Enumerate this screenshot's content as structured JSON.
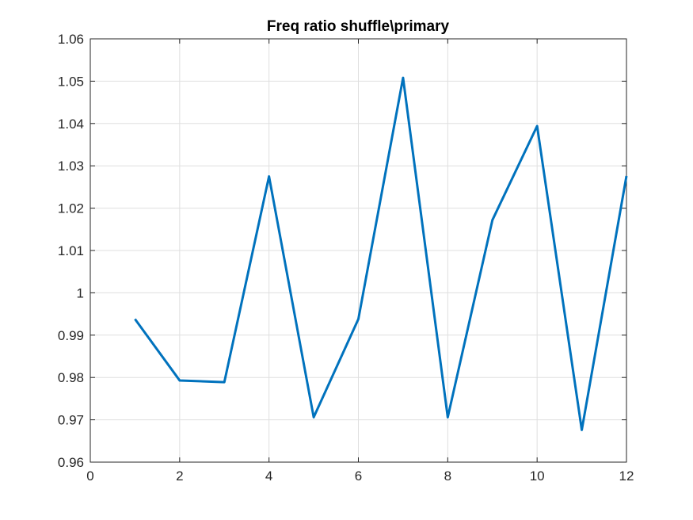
{
  "chart_data": {
    "type": "line",
    "title": "Freq ratio shuffle\\primary",
    "xlabel": "",
    "ylabel": "",
    "xlim": [
      0,
      12
    ],
    "ylim": [
      0.96,
      1.06
    ],
    "xticks": [
      0,
      2,
      4,
      6,
      8,
      10,
      12
    ],
    "yticks": [
      0.96,
      0.97,
      0.98,
      0.99,
      1,
      1.01,
      1.02,
      1.03,
      1.04,
      1.05,
      1.06
    ],
    "xtick_labels": [
      "0",
      "2",
      "4",
      "6",
      "8",
      "10",
      "12"
    ],
    "ytick_labels": [
      "0.96",
      "0.97",
      "0.98",
      "0.99",
      "1",
      "1.01",
      "1.02",
      "1.03",
      "1.04",
      "1.05",
      "1.06"
    ],
    "grid": true,
    "series": [
      {
        "color": "#0072bd",
        "x": [
          1,
          2,
          3,
          4,
          5,
          6,
          7,
          8,
          9,
          10,
          11,
          12
        ],
        "y": [
          0.9938,
          0.9793,
          0.9789,
          1.0275,
          0.9706,
          0.9938,
          1.0508,
          0.9706,
          1.0172,
          1.0394,
          0.9676,
          1.0276
        ]
      }
    ]
  }
}
